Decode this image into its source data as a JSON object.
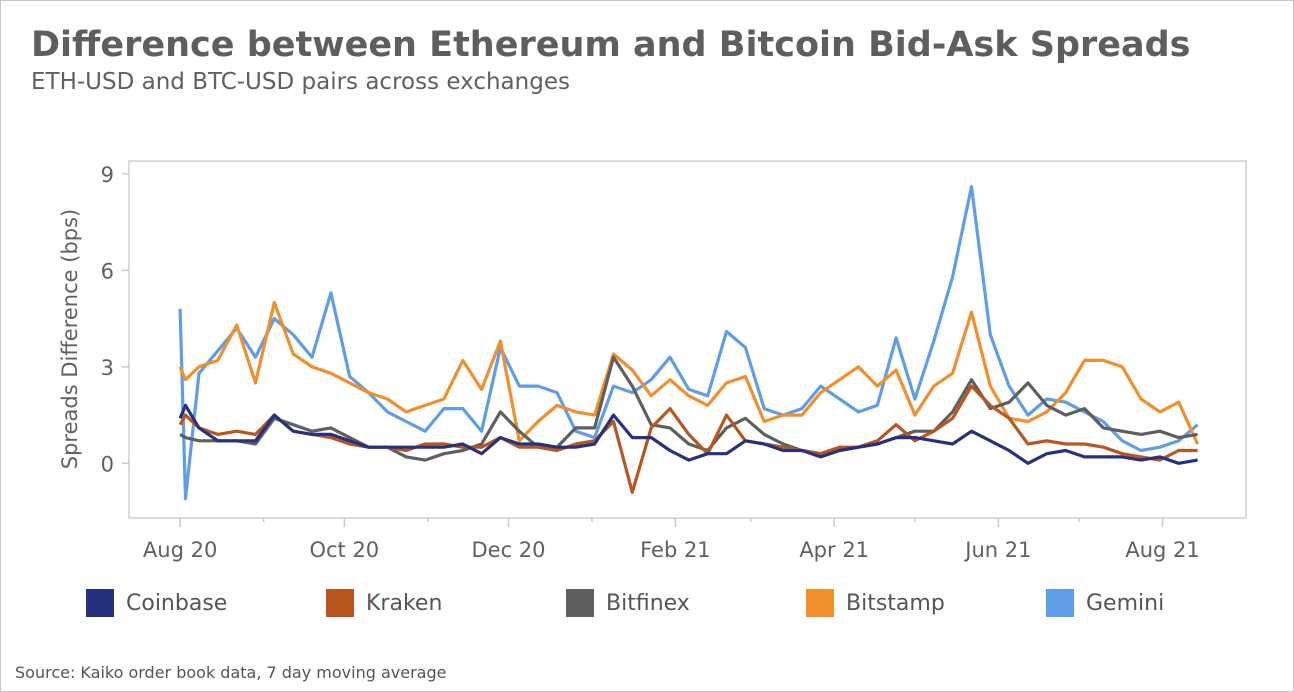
{
  "chart_data": {
    "type": "line",
    "title": "Difference between Ethereum and Bitcoin Bid-Ask Spreads",
    "subtitle": "ETH-USD and BTC-USD pairs across exchanges",
    "ylabel": "Spreads Difference (bps)",
    "xlabel": "",
    "ylim": [
      -1.7,
      9.4
    ],
    "yticks": [
      0,
      3,
      6,
      9
    ],
    "xlim": [
      "2020-07-13",
      "2021-09-01"
    ],
    "xticks": [
      {
        "date": "2020-08-01",
        "label": "Aug 20"
      },
      {
        "date": "2020-10-01",
        "label": "Oct 20"
      },
      {
        "date": "2020-12-01",
        "label": "Dec 20"
      },
      {
        "date": "2021-02-01",
        "label": "Feb 21"
      },
      {
        "date": "2021-04-01",
        "label": "Apr 21"
      },
      {
        "date": "2021-06-01",
        "label": "Jun 21"
      },
      {
        "date": "2021-08-01",
        "label": "Aug 21"
      }
    ],
    "minor_xticks": [
      "2020-09-01",
      "2020-11-01",
      "2021-01-01",
      "2021-03-01",
      "2021-05-01",
      "2021-07-01"
    ],
    "grid": false,
    "legend_position": "bottom",
    "source": "Source: Kaiko order book data, 7 day moving average",
    "x": [
      "2020-08-01",
      "2020-08-03",
      "2020-08-08",
      "2020-08-15",
      "2020-08-22",
      "2020-08-29",
      "2020-09-05",
      "2020-09-12",
      "2020-09-19",
      "2020-09-26",
      "2020-10-03",
      "2020-10-10",
      "2020-10-17",
      "2020-10-24",
      "2020-10-31",
      "2020-11-07",
      "2020-11-14",
      "2020-11-21",
      "2020-11-28",
      "2020-12-05",
      "2020-12-12",
      "2020-12-19",
      "2020-12-26",
      "2021-01-02",
      "2021-01-09",
      "2021-01-16",
      "2021-01-23",
      "2021-01-30",
      "2021-02-06",
      "2021-02-13",
      "2021-02-20",
      "2021-02-27",
      "2021-03-06",
      "2021-03-13",
      "2021-03-20",
      "2021-03-27",
      "2021-04-03",
      "2021-04-10",
      "2021-04-17",
      "2021-04-24",
      "2021-05-01",
      "2021-05-08",
      "2021-05-15",
      "2021-05-22",
      "2021-05-29",
      "2021-06-05",
      "2021-06-12",
      "2021-06-19",
      "2021-06-26",
      "2021-07-03",
      "2021-07-10",
      "2021-07-17",
      "2021-07-24",
      "2021-07-31",
      "2021-08-07",
      "2021-08-14"
    ],
    "series": [
      {
        "name": "Coinbase",
        "color": "#26327f",
        "values": [
          1.4,
          1.8,
          1.1,
          0.7,
          0.7,
          0.7,
          1.5,
          1.0,
          0.9,
          0.9,
          0.7,
          0.5,
          0.5,
          0.5,
          0.5,
          0.5,
          0.6,
          0.3,
          0.8,
          0.6,
          0.6,
          0.5,
          0.5,
          0.6,
          1.5,
          0.8,
          0.8,
          0.4,
          0.1,
          0.3,
          0.3,
          0.7,
          0.6,
          0.4,
          0.4,
          0.2,
          0.4,
          0.5,
          0.6,
          0.8,
          0.8,
          0.7,
          0.6,
          1.0,
          0.7,
          0.4,
          0.0,
          0.3,
          0.4,
          0.2,
          0.2,
          0.2,
          0.1,
          0.2,
          0.0,
          0.1
        ]
      },
      {
        "name": "Kraken",
        "color": "#b9561f",
        "values": [
          1.2,
          1.5,
          1.1,
          0.9,
          1.0,
          0.9,
          1.5,
          1.0,
          0.9,
          0.8,
          0.6,
          0.5,
          0.5,
          0.4,
          0.6,
          0.6,
          0.5,
          0.5,
          0.8,
          0.5,
          0.5,
          0.4,
          0.6,
          0.7,
          1.3,
          -0.9,
          1.1,
          1.7,
          0.9,
          0.3,
          1.5,
          0.7,
          0.6,
          0.5,
          0.4,
          0.3,
          0.5,
          0.5,
          0.7,
          1.2,
          0.7,
          1.0,
          1.4,
          2.4,
          1.8,
          1.4,
          0.6,
          0.7,
          0.6,
          0.6,
          0.5,
          0.3,
          0.2,
          0.1,
          0.4,
          0.4
        ]
      },
      {
        "name": "Bitfinex",
        "color": "#5f5f5f",
        "values": [
          0.9,
          0.8,
          0.7,
          0.7,
          0.7,
          0.6,
          1.4,
          1.2,
          1.0,
          1.1,
          0.8,
          0.5,
          0.5,
          0.2,
          0.1,
          0.3,
          0.4,
          0.6,
          1.6,
          1.0,
          0.5,
          0.5,
          1.1,
          1.1,
          3.3,
          2.4,
          1.2,
          1.1,
          0.6,
          0.4,
          1.1,
          1.4,
          0.9,
          0.6,
          0.4,
          0.3,
          0.4,
          0.5,
          0.6,
          0.8,
          1.0,
          1.0,
          1.6,
          2.6,
          1.7,
          1.9,
          2.5,
          1.8,
          1.5,
          1.7,
          1.1,
          1.0,
          0.9,
          1.0,
          0.8,
          0.9
        ]
      },
      {
        "name": "Bitstamp",
        "color": "#f28e2b",
        "values": [
          3.0,
          2.6,
          3.0,
          3.2,
          4.3,
          2.5,
          5.0,
          3.4,
          3.0,
          2.8,
          2.5,
          2.2,
          2.0,
          1.6,
          1.8,
          2.0,
          3.2,
          2.3,
          3.8,
          0.7,
          1.3,
          1.8,
          1.6,
          1.5,
          3.4,
          2.9,
          2.1,
          2.6,
          2.1,
          1.8,
          2.5,
          2.7,
          1.3,
          1.5,
          1.5,
          2.2,
          2.6,
          3.0,
          2.4,
          2.9,
          1.5,
          2.4,
          2.8,
          4.7,
          2.4,
          1.4,
          1.3,
          1.6,
          2.2,
          3.2,
          3.2,
          3.0,
          2.0,
          1.6,
          1.9,
          0.6
        ]
      },
      {
        "name": "Gemini",
        "color": "#5f9de8",
        "values": [
          4.8,
          -1.1,
          2.8,
          3.5,
          4.2,
          3.3,
          4.5,
          4.0,
          3.3,
          5.3,
          2.7,
          2.2,
          1.6,
          1.3,
          1.0,
          1.7,
          1.7,
          1.0,
          3.6,
          2.4,
          2.4,
          2.2,
          1.0,
          0.8,
          2.4,
          2.2,
          2.6,
          3.3,
          2.3,
          2.1,
          4.1,
          3.6,
          1.7,
          1.5,
          1.7,
          2.4,
          2.0,
          1.6,
          1.8,
          3.9,
          2.0,
          3.8,
          5.8,
          8.6,
          4.0,
          2.4,
          1.5,
          2.0,
          1.9,
          1.6,
          1.3,
          0.7,
          0.4,
          0.5,
          0.7,
          1.2
        ]
      }
    ]
  }
}
